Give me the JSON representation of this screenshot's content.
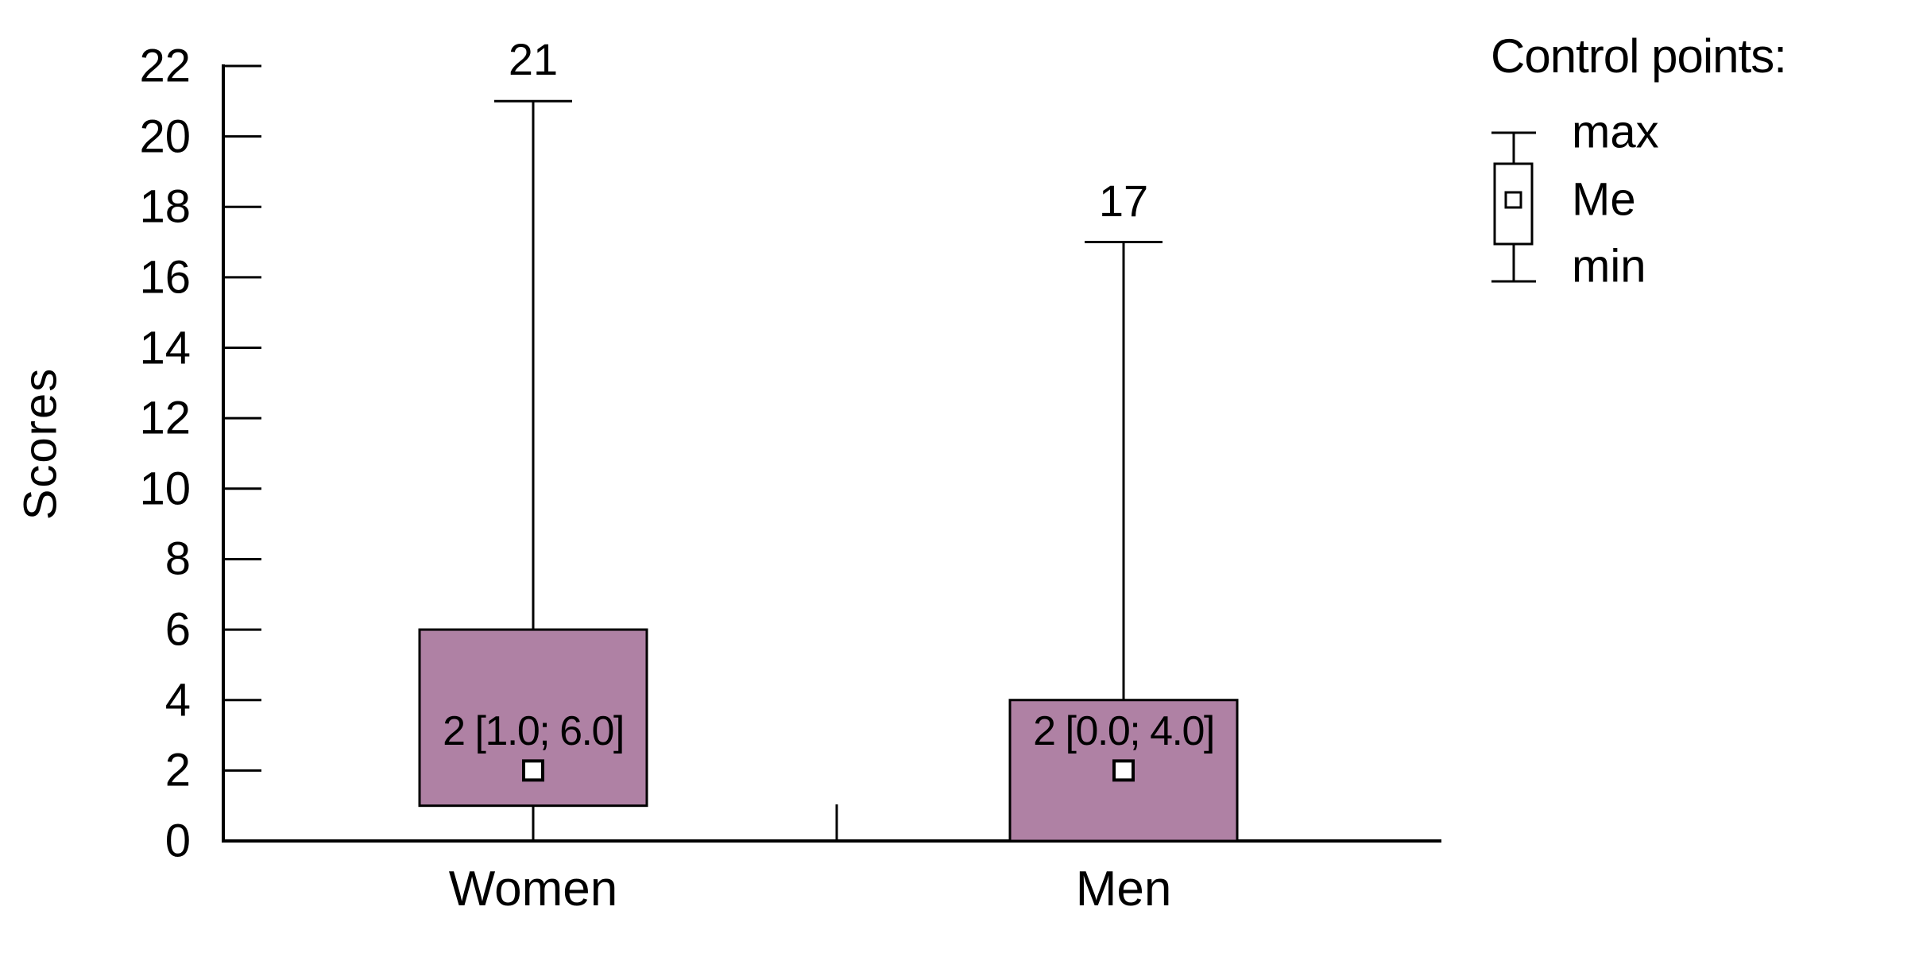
{
  "figure": {
    "background": "#ffffff",
    "text_color": "#000000"
  },
  "chart_data": {
    "type": "boxplot",
    "title": "",
    "ylabel": "Scores",
    "xlabel": "",
    "ylim": [
      0,
      22
    ],
    "ytick_step": 2,
    "yticks": [
      0,
      2,
      4,
      6,
      8,
      10,
      12,
      14,
      16,
      18,
      20,
      22
    ],
    "categories": [
      "Women",
      "Men"
    ],
    "series": [
      {
        "category": "Women",
        "min": 0,
        "q1": 1.0,
        "median": 2,
        "q3": 6.0,
        "max": 21,
        "max_label": "21",
        "annotation": "2 [1.0; 6.0]"
      },
      {
        "category": "Men",
        "min": 0,
        "q1": 0.0,
        "median": 2,
        "q3": 4.0,
        "max": 17,
        "max_label": "17",
        "annotation": "2 [0.0; 4.0]"
      }
    ],
    "grid": false,
    "box_fill": "#af81a4",
    "box_border": "#000000",
    "median_marker": "white-square",
    "legend": {
      "position": "top-right",
      "title": "Control points:",
      "items": [
        {
          "label": "max"
        },
        {
          "label": "Me"
        },
        {
          "label": "min"
        }
      ]
    }
  }
}
